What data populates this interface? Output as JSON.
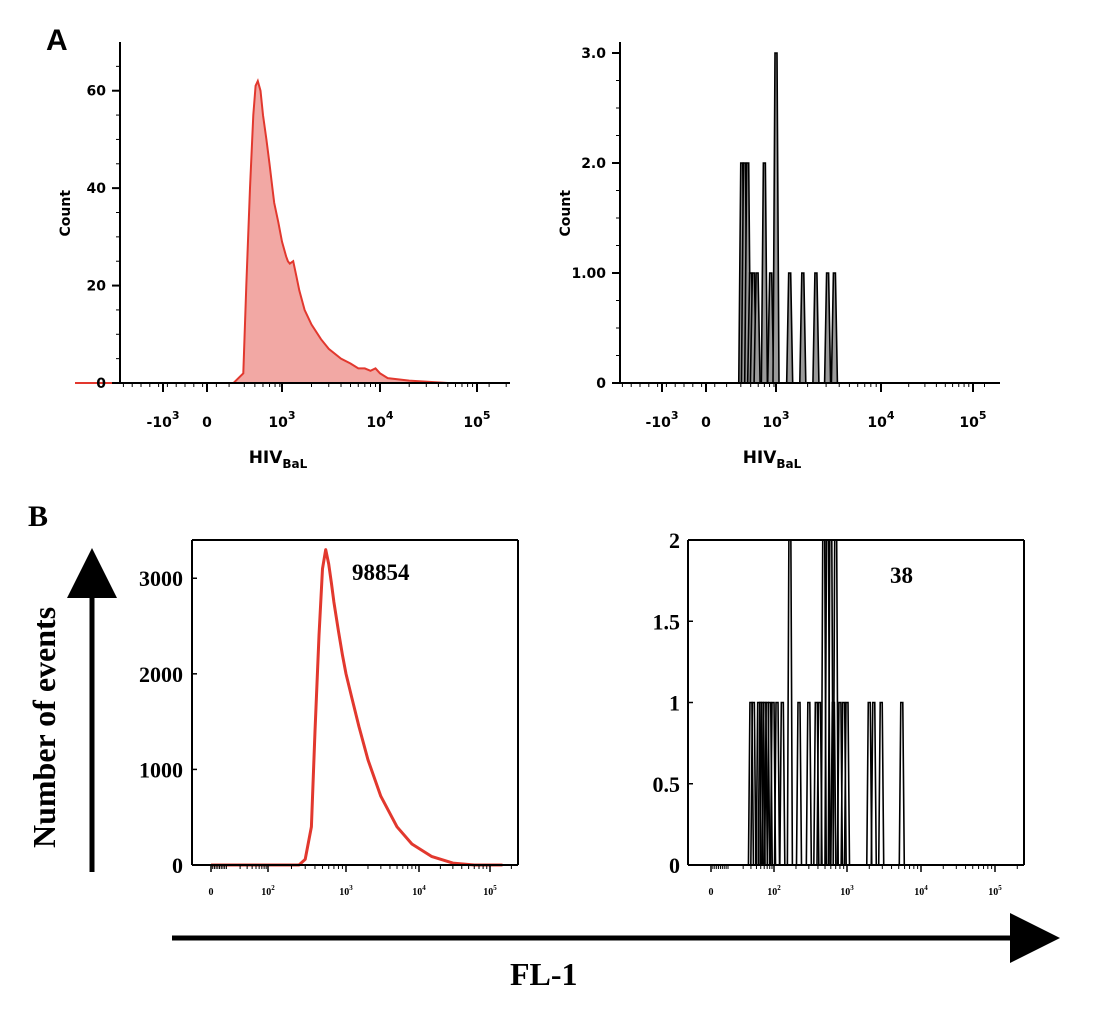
{
  "panels": {
    "a_label": "A",
    "b_label": "B"
  },
  "colors": {
    "red_line": "#e2382e",
    "red_fill": "#f2a8a4",
    "black": "#000000",
    "gray_fill": "#9a9a9a"
  },
  "shared": {
    "y_arrow_label": "Number of events",
    "x_arrow_label": "FL-1"
  },
  "chart_data": [
    {
      "id": "a1",
      "type": "area",
      "xscale": "biexponential",
      "title": "",
      "xlabel": "HIV",
      "xlabel_sub": "BaL",
      "ylabel": "Count",
      "ylim": [
        0,
        70
      ],
      "yticks": [
        0,
        20,
        40,
        60
      ],
      "ytick_labels": [
        "0",
        "20",
        "40",
        "60"
      ],
      "xticks": [
        -1000,
        0,
        1000,
        10000,
        100000
      ],
      "xtick_labels": [
        {
          "base": "-10",
          "exp": "3"
        },
        {
          "base": "0",
          "exp": ""
        },
        {
          "base": "10",
          "exp": "3"
        },
        {
          "base": "10",
          "exp": "4"
        },
        {
          "base": "10",
          "exp": "5"
        }
      ],
      "x": [
        -3000,
        -1500,
        -500,
        0,
        250,
        330,
        360,
        400,
        440,
        470,
        500,
        540,
        580,
        640,
        700,
        760,
        800,
        900,
        1000,
        1100,
        1150,
        1200,
        1300,
        1400,
        1500,
        1700,
        2000,
        2500,
        3000,
        4000,
        5000,
        6000,
        7000,
        8000,
        9000,
        10000,
        12000,
        20000,
        50000,
        200000
      ],
      "y": [
        0,
        0,
        0,
        0,
        0,
        2,
        20,
        40,
        55,
        61,
        62,
        60,
        55,
        50,
        45,
        40,
        37,
        33,
        29,
        26,
        25,
        24.5,
        25,
        22,
        19,
        15,
        12,
        9,
        7,
        5,
        4,
        3,
        3,
        2.5,
        3,
        2,
        1,
        0.5,
        0,
        0
      ]
    },
    {
      "id": "a2",
      "type": "histogram",
      "xscale": "biexponential",
      "title": "",
      "xlabel": "HIV",
      "xlabel_sub": "BaL",
      "ylabel": "Count",
      "ylim": [
        0,
        3.1
      ],
      "yticks": [
        0,
        1,
        2,
        3
      ],
      "ytick_labels": [
        "0",
        "1.00",
        "2.0",
        "3.0"
      ],
      "xticks": [
        -1000,
        0,
        1000,
        10000,
        100000
      ],
      "xtick_labels": [
        {
          "base": "-10",
          "exp": "3"
        },
        {
          "base": "0",
          "exp": ""
        },
        {
          "base": "10",
          "exp": "3"
        },
        {
          "base": "10",
          "exp": "4"
        },
        {
          "base": "10",
          "exp": "5"
        }
      ],
      "peaks": [
        {
          "x": 350,
          "y": 2
        },
        {
          "x": 380,
          "y": 2
        },
        {
          "x": 420,
          "y": 2
        },
        {
          "x": 460,
          "y": 1
        },
        {
          "x": 500,
          "y": 1
        },
        {
          "x": 560,
          "y": 1
        },
        {
          "x": 700,
          "y": 2
        },
        {
          "x": 850,
          "y": 1
        },
        {
          "x": 1000,
          "y": 3
        },
        {
          "x": 1350,
          "y": 1
        },
        {
          "x": 1800,
          "y": 1
        },
        {
          "x": 2400,
          "y": 1
        },
        {
          "x": 3100,
          "y": 1
        },
        {
          "x": 3600,
          "y": 1
        }
      ]
    },
    {
      "id": "b1",
      "type": "line",
      "xscale": "log-with-zero",
      "title": "",
      "annotation": "98854",
      "xlabel": "",
      "ylabel": "",
      "ylim": [
        0,
        3400
      ],
      "yticks": [
        0,
        1000,
        2000,
        3000
      ],
      "ytick_labels": [
        "0",
        "1000",
        "2000",
        "3000"
      ],
      "xticks": [
        0,
        100,
        1000,
        10000,
        100000
      ],
      "xtick_labels": [
        {
          "base": "0",
          "exp": ""
        },
        {
          "base": "10",
          "exp": "2"
        },
        {
          "base": "10",
          "exp": "3"
        },
        {
          "base": "10",
          "exp": "4"
        },
        {
          "base": "10",
          "exp": "5"
        }
      ],
      "x": [
        0,
        100,
        250,
        300,
        360,
        400,
        450,
        500,
        550,
        600,
        650,
        700,
        800,
        900,
        1000,
        1200,
        1500,
        2000,
        3000,
        5000,
        8000,
        15000,
        30000,
        60000,
        150000
      ],
      "y": [
        0,
        0,
        0,
        60,
        400,
        1400,
        2400,
        3100,
        3300,
        3150,
        2950,
        2750,
        2450,
        2200,
        2000,
        1750,
        1450,
        1100,
        720,
        400,
        220,
        90,
        20,
        0,
        0
      ]
    },
    {
      "id": "b2",
      "type": "histogram",
      "xscale": "log-with-zero",
      "title": "",
      "annotation": "38",
      "xlabel": "",
      "ylabel": "",
      "ylim": [
        0,
        2
      ],
      "yticks": [
        0,
        0.5,
        1,
        1.5,
        2
      ],
      "ytick_labels": [
        "0",
        "0.5",
        "1",
        "1.5",
        "2"
      ],
      "xticks": [
        0,
        100,
        1000,
        10000,
        100000
      ],
      "xtick_labels": [
        {
          "base": "0",
          "exp": ""
        },
        {
          "base": "10",
          "exp": "2"
        },
        {
          "base": "10",
          "exp": "3"
        },
        {
          "base": "10",
          "exp": "4"
        },
        {
          "base": "10",
          "exp": "5"
        }
      ],
      "peaks": [
        {
          "x": 30,
          "y": 1
        },
        {
          "x": 34,
          "y": 1
        },
        {
          "x": 45,
          "y": 1
        },
        {
          "x": 50,
          "y": 1
        },
        {
          "x": 55,
          "y": 1
        },
        {
          "x": 62,
          "y": 1
        },
        {
          "x": 70,
          "y": 1
        },
        {
          "x": 80,
          "y": 1
        },
        {
          "x": 95,
          "y": 1
        },
        {
          "x": 110,
          "y": 1
        },
        {
          "x": 130,
          "y": 1
        },
        {
          "x": 165,
          "y": 2
        },
        {
          "x": 220,
          "y": 1
        },
        {
          "x": 300,
          "y": 1
        },
        {
          "x": 380,
          "y": 1
        },
        {
          "x": 420,
          "y": 1
        },
        {
          "x": 480,
          "y": 2
        },
        {
          "x": 540,
          "y": 2
        },
        {
          "x": 600,
          "y": 2
        },
        {
          "x": 650,
          "y": 1
        },
        {
          "x": 700,
          "y": 2
        },
        {
          "x": 800,
          "y": 1
        },
        {
          "x": 900,
          "y": 1
        },
        {
          "x": 1000,
          "y": 1
        },
        {
          "x": 2000,
          "y": 1
        },
        {
          "x": 2300,
          "y": 1
        },
        {
          "x": 2900,
          "y": 1
        },
        {
          "x": 5500,
          "y": 1
        }
      ]
    }
  ]
}
